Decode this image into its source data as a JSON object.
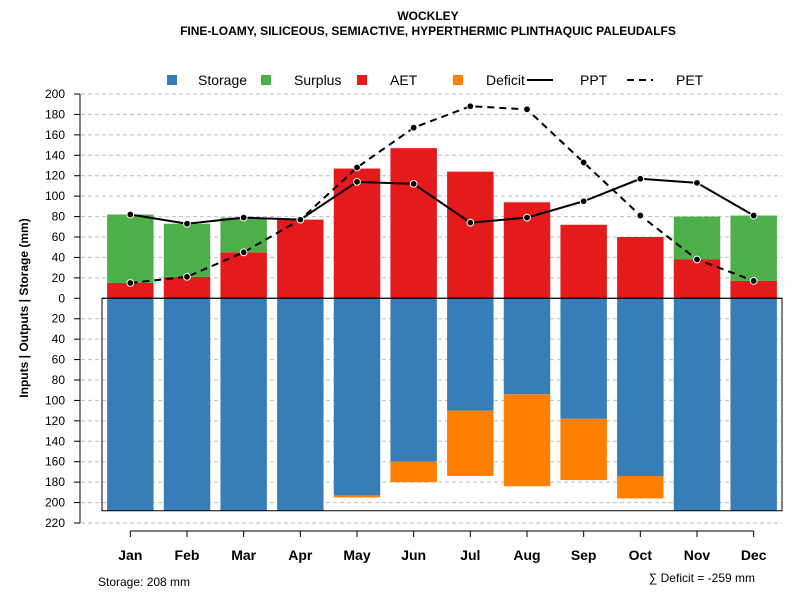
{
  "chart_data": {
    "type": "bar",
    "title": "WOCKLEY",
    "subtitle": "FINE-LOAMY, SILICEOUS, SEMIACTIVE, HYPERTHERMIC PLINTHAQUIC PALEUDALFS",
    "ylabel": "Inputs | Outputs | Storage    (mm)",
    "ylim": [
      -220,
      200
    ],
    "yticks": [
      200,
      180,
      160,
      140,
      120,
      100,
      80,
      60,
      40,
      20,
      0,
      -20,
      -40,
      -60,
      -80,
      -100,
      -120,
      -140,
      -160,
      -180,
      -200,
      -220
    ],
    "ytick_labels": [
      "200",
      "180",
      "160",
      "140",
      "120",
      "100",
      "80",
      "60",
      "40",
      "20",
      "0",
      "20",
      "40",
      "60",
      "80",
      "100",
      "120",
      "140",
      "160",
      "180",
      "200",
      "220"
    ],
    "grid": true,
    "categories": [
      "Jan",
      "Feb",
      "Mar",
      "Apr",
      "May",
      "Jun",
      "Jul",
      "Aug",
      "Sep",
      "Oct",
      "Nov",
      "Dec"
    ],
    "legend": {
      "position": "top",
      "entries": [
        {
          "label": "Storage",
          "kind": "box",
          "color": "#377eb8"
        },
        {
          "label": "Surplus",
          "kind": "box",
          "color": "#4daf4a"
        },
        {
          "label": "AET",
          "kind": "box",
          "color": "#e41a1c"
        },
        {
          "label": "Deficit",
          "kind": "box",
          "color": "#ff7f00"
        },
        {
          "label": "PPT",
          "kind": "solid"
        },
        {
          "label": "PET",
          "kind": "dashed"
        }
      ]
    },
    "series": {
      "aet": [
        15,
        21,
        45,
        77,
        127,
        147,
        124,
        94,
        72,
        60,
        38,
        17
      ],
      "surplus": [
        67,
        52,
        34,
        0,
        0,
        0,
        0,
        0,
        0,
        0,
        42,
        64
      ],
      "storage": [
        208,
        208,
        208,
        208,
        193,
        160,
        110,
        94,
        118,
        174,
        208,
        208
      ],
      "deficit": [
        0,
        0,
        0,
        0,
        2,
        20,
        64,
        90,
        60,
        22,
        0,
        0
      ],
      "ppt": [
        82,
        73,
        79,
        77,
        114,
        112,
        74,
        79,
        95,
        117,
        113,
        81
      ],
      "pet": [
        15,
        21,
        45,
        77,
        128,
        167,
        188,
        185,
        133,
        81,
        38,
        17
      ]
    },
    "colors": {
      "storage": "#377eb8",
      "surplus": "#4daf4a",
      "aet": "#e41a1c",
      "deficit": "#ff7f00",
      "line": "#000000",
      "grid": "#bebebe"
    },
    "annotations": {
      "storage": "Storage: 208 mm",
      "deficit": "∑ Deficit = -259 mm",
      "storage_capacity": 208
    }
  }
}
